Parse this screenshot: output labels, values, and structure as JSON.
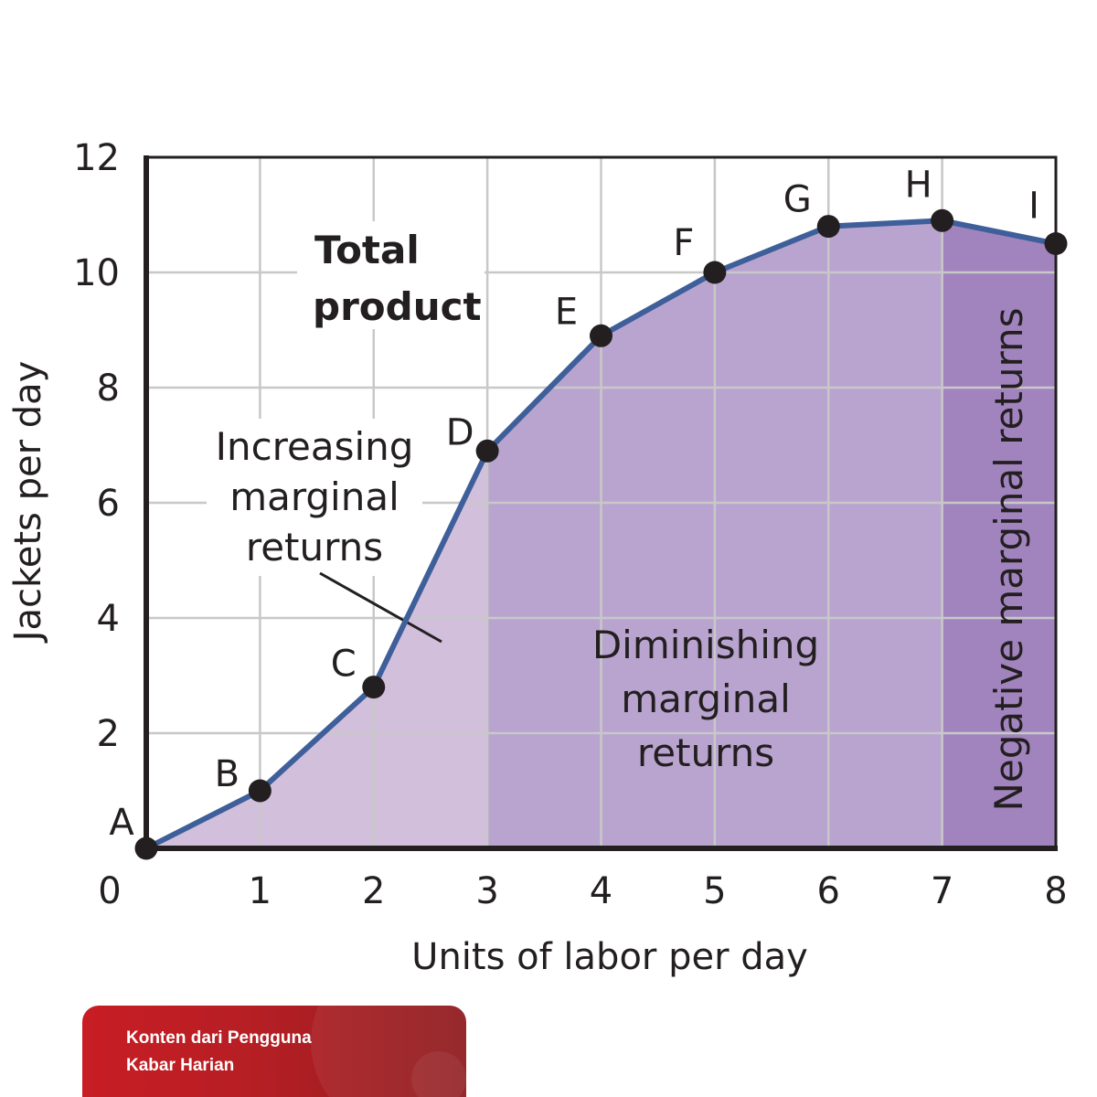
{
  "chart_data": {
    "type": "line",
    "title": "",
    "xlabel": "Units of labor per day",
    "ylabel": "Jackets per day",
    "xlim": [
      0,
      8
    ],
    "ylim": [
      0,
      12
    ],
    "x_ticks": [
      "0",
      "1",
      "2",
      "3",
      "4",
      "5",
      "6",
      "7",
      "8"
    ],
    "y_ticks": [
      "2",
      "4",
      "6",
      "8",
      "10",
      "12"
    ],
    "grid": true,
    "series": [
      {
        "name": "Total product",
        "points": [
          {
            "label": "A",
            "x": 0,
            "y": 0
          },
          {
            "label": "B",
            "x": 1,
            "y": 1
          },
          {
            "label": "C",
            "x": 2,
            "y": 2.8
          },
          {
            "label": "D",
            "x": 3,
            "y": 6.9
          },
          {
            "label": "E",
            "x": 4,
            "y": 8.9
          },
          {
            "label": "F",
            "x": 5,
            "y": 10
          },
          {
            "label": "G",
            "x": 6,
            "y": 10.8
          },
          {
            "label": "H",
            "x": 7,
            "y": 10.9
          },
          {
            "label": "I",
            "x": 8,
            "y": 10.5
          }
        ]
      }
    ],
    "regions": [
      {
        "lines": [
          "Increasing",
          "marginal",
          "returns"
        ],
        "x_range": [
          0,
          3
        ],
        "color": "#d2bfdc"
      },
      {
        "lines": [
          "Diminishing",
          "marginal",
          "returns"
        ],
        "x_range": [
          3,
          7
        ],
        "color": "#b9a4cf"
      },
      {
        "lines": [
          "Negative marginal returns"
        ],
        "x_range": [
          7,
          8
        ],
        "color": "#a184bd"
      }
    ],
    "curve_label_lines": [
      "Total",
      "product"
    ],
    "line_color": "#3e5f9a"
  },
  "banner": {
    "line1": "Konten dari Pengguna",
    "line2": "Kabar Harian"
  }
}
